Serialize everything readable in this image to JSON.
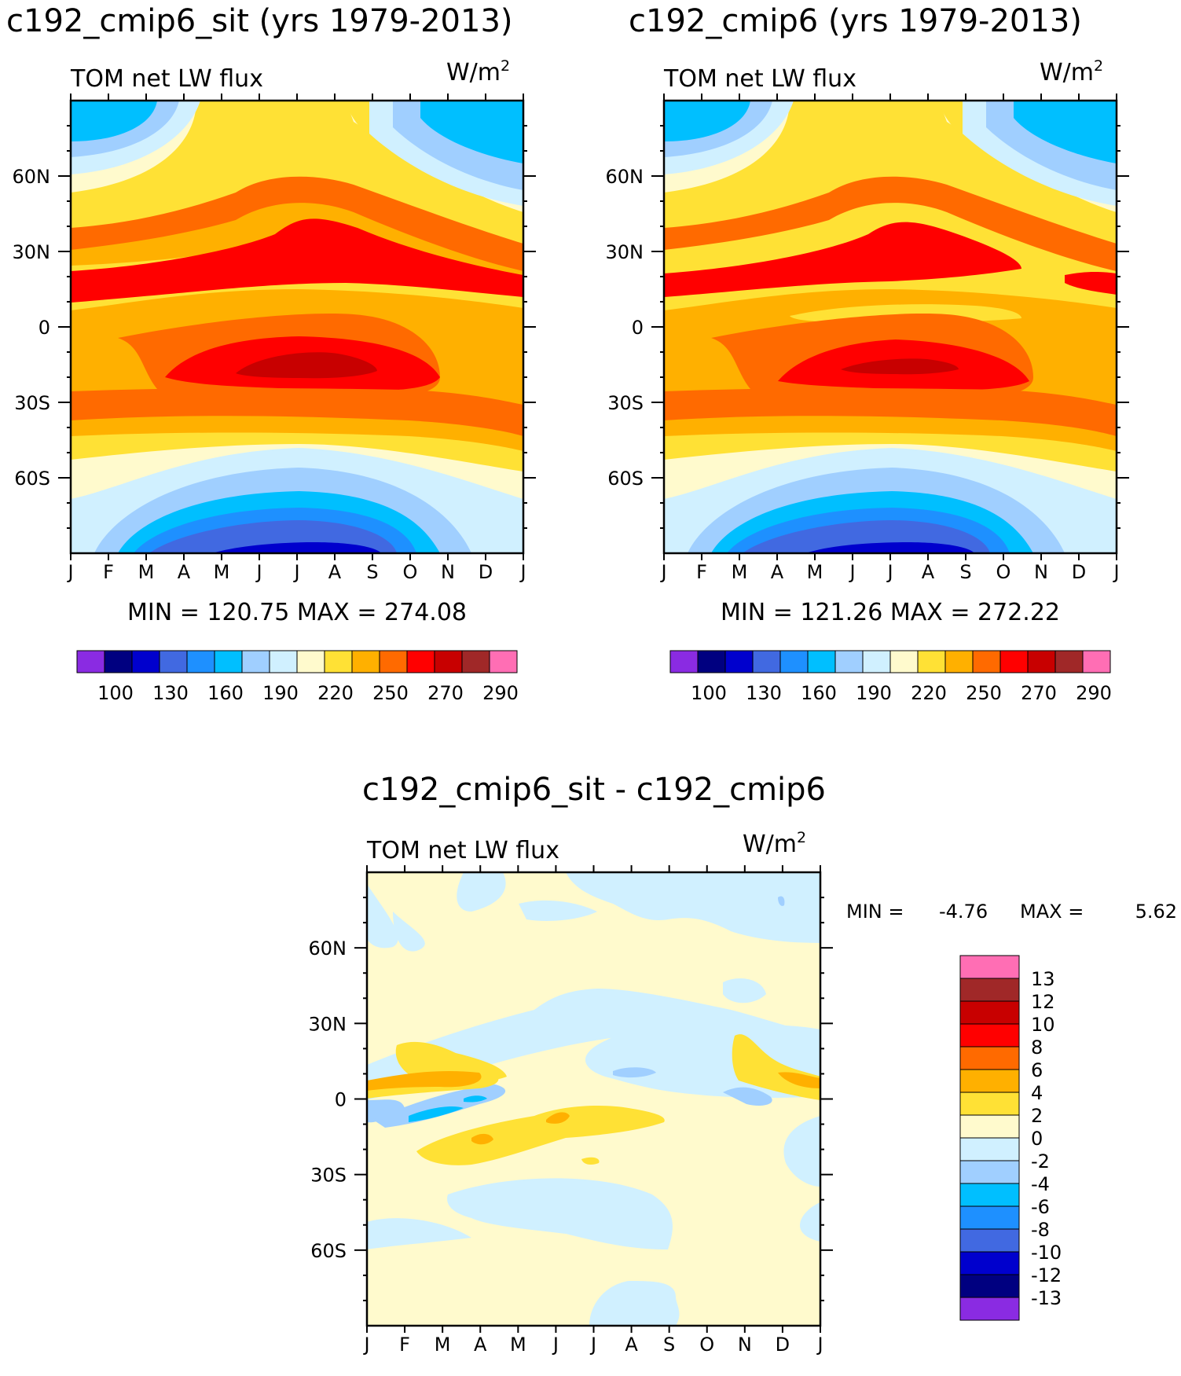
{
  "chart_data": [
    {
      "type": "heatmap",
      "title": "c192_cmip6_sit (yrs 1979-2013)",
      "left_label": "TOM net LW flux",
      "units": "W/m",
      "units_sup": "2",
      "x_ticks": [
        "J",
        "F",
        "M",
        "A",
        "M",
        "J",
        "J",
        "A",
        "S",
        "O",
        "N",
        "D",
        "J"
      ],
      "y_ticks": [
        "60N",
        "30N",
        "0",
        "30S",
        "60S"
      ],
      "y_values": [
        60,
        30,
        0,
        -30,
        -60
      ],
      "ylim": [
        -90,
        90
      ],
      "stats": "MIN = 120.75 MAX = 274.08",
      "min": 120.75,
      "max": 274.08,
      "colorbar_labels": [
        "100",
        "130",
        "160",
        "190",
        "220",
        "250",
        "270",
        "290"
      ],
      "colorbar_colors": [
        "#8a2be2",
        "#000080",
        "#0000cd",
        "#4169e1",
        "#1e90ff",
        "#00bfff",
        "#a0cfff",
        "#d0f0ff",
        "#fffacd",
        "#ffe135",
        "#ffb000",
        "#ff6a00",
        "#ff0000",
        "#c80000",
        "#a02828",
        "#ff6eb4"
      ]
    },
    {
      "type": "heatmap",
      "title": "c192_cmip6 (yrs 1979-2013)",
      "left_label": "TOM net LW flux",
      "units": "W/m",
      "units_sup": "2",
      "x_ticks": [
        "J",
        "F",
        "M",
        "A",
        "M",
        "J",
        "J",
        "A",
        "S",
        "O",
        "N",
        "D",
        "J"
      ],
      "y_ticks": [
        "60N",
        "30N",
        "0",
        "30S",
        "60S"
      ],
      "y_values": [
        60,
        30,
        0,
        -30,
        -60
      ],
      "ylim": [
        -90,
        90
      ],
      "stats": "MIN = 121.26 MAX = 272.22",
      "min": 121.26,
      "max": 272.22,
      "colorbar_labels": [
        "100",
        "130",
        "160",
        "190",
        "220",
        "250",
        "270",
        "290"
      ],
      "colorbar_colors": [
        "#8a2be2",
        "#000080",
        "#0000cd",
        "#4169e1",
        "#1e90ff",
        "#00bfff",
        "#a0cfff",
        "#d0f0ff",
        "#fffacd",
        "#ffe135",
        "#ffb000",
        "#ff6a00",
        "#ff0000",
        "#c80000",
        "#a02828",
        "#ff6eb4"
      ]
    },
    {
      "type": "heatmap",
      "title": "c192_cmip6_sit - c192_cmip6",
      "left_label": "TOM net LW flux",
      "units": "W/m",
      "units_sup": "2",
      "x_ticks": [
        "J",
        "F",
        "M",
        "A",
        "M",
        "J",
        "J",
        "A",
        "S",
        "O",
        "N",
        "D",
        "J"
      ],
      "y_ticks": [
        "60N",
        "30N",
        "0",
        "30S",
        "60S"
      ],
      "y_values": [
        60,
        30,
        0,
        -30,
        -60
      ],
      "ylim": [
        -90,
        90
      ],
      "stats_min_label": "MIN =",
      "stats_min": "-4.76",
      "stats_max_label": "MAX =",
      "stats_max": "5.62",
      "min": -4.76,
      "max": 5.62,
      "colorbar_labels": [
        "13",
        "12",
        "10",
        "8",
        "6",
        "4",
        "2",
        "0",
        "-2",
        "-4",
        "-6",
        "-8",
        "-10",
        "-12",
        "-13"
      ],
      "colorbar_colors": [
        "#ff6eb4",
        "#a02828",
        "#c80000",
        "#ff0000",
        "#ff6a00",
        "#ffb000",
        "#ffe135",
        "#fffacd",
        "#d0f0ff",
        "#a0cfff",
        "#00bfff",
        "#1e90ff",
        "#4169e1",
        "#0000cd",
        "#000080",
        "#8a2be2"
      ]
    }
  ]
}
